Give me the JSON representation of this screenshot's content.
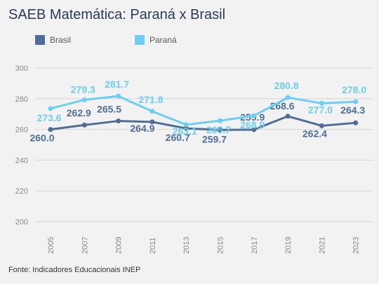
{
  "header": {
    "title": "SAEB Matemática: Paraná x Brasil"
  },
  "footer": {
    "source": "Fonte: Indicadores Educacionais INEP"
  },
  "chart_data": {
    "type": "line",
    "title": "SAEB Matemática: Paraná x Brasil",
    "xlabel": "",
    "ylabel": "",
    "categories": [
      "2005",
      "2007",
      "2009",
      "2011",
      "2013",
      "2015",
      "2017",
      "2019",
      "2021",
      "2023"
    ],
    "ylim": [
      200,
      300
    ],
    "yticks": [
      200,
      220,
      240,
      260,
      280,
      300
    ],
    "grid": true,
    "legend_position": "top-left",
    "series": [
      {
        "name": "Brasil",
        "color": "#4f6e97",
        "values": [
          260.0,
          262.9,
          265.5,
          264.9,
          260.7,
          259.7,
          259.9,
          268.6,
          262.4,
          264.3
        ],
        "labels": [
          "260.0",
          "262.9",
          "265.5",
          "264.9",
          "260.7",
          "259.7",
          "259.9",
          "268.6",
          "262.4",
          "264.3"
        ]
      },
      {
        "name": "Paraná",
        "color": "#6ecdf2",
        "values": [
          273.6,
          279.3,
          281.7,
          271.8,
          263.1,
          265.7,
          268.9,
          280.8,
          277.0,
          278.0
        ],
        "labels": [
          "273.6",
          "279.3",
          "281.7",
          "271.8",
          "263.1",
          "265.7",
          "268.9",
          "280.8",
          "277.0",
          "278.0"
        ]
      }
    ]
  }
}
